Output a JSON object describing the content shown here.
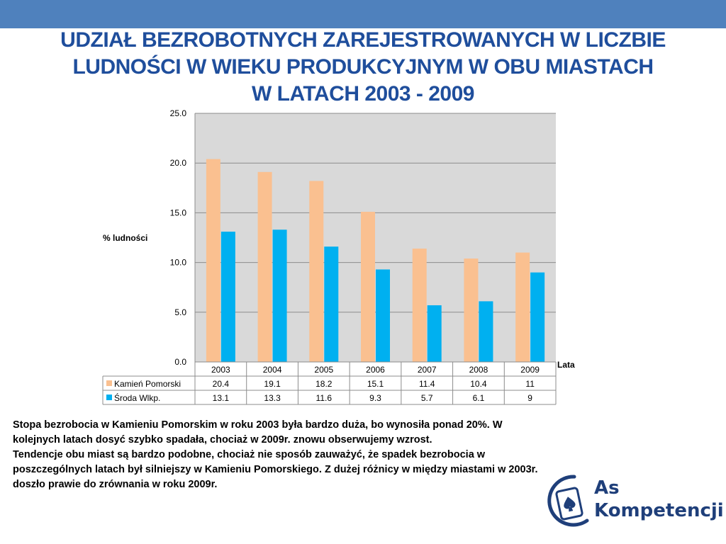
{
  "slide": {
    "title_lines": [
      "Udział bezrobotnych zarejestrowanych w liczbie",
      "ludności w wieku produkcyjnym w obu miastach",
      "w latach 2003 - 2009"
    ],
    "body_paragraphs": [
      "Stopa bezrobocia w Kamieniu Pomorskim w roku 2003 była bardzo duża, bo wynosiła ponad 20%.  W kolejnych latach dosyć szybko spadała, chociaż w 2009r. znowu obserwujemy wzrost.",
      "Tendencje obu miast są bardzo podobne, chociaż nie sposób zauważyć, że spadek bezrobocia w poszczególnych latach był silniejszy w Kamieniu Pomorskiego. Z dużej różnicy w między miastami w 2003r. doszło prawie do zrównania w roku 2009r."
    ],
    "logo": {
      "line1": "As",
      "line2": "Kompetencji",
      "icon": "spade-card-icon"
    },
    "colors": {
      "top_bar": "#4f81bd",
      "title": "#1f4e9c"
    }
  },
  "chart_data": {
    "type": "bar",
    "categories": [
      "2003",
      "2004",
      "2005",
      "2006",
      "2007",
      "2008",
      "2009"
    ],
    "series": [
      {
        "name": "Kamień Pomorski",
        "values": [
          20.4,
          19.1,
          18.2,
          15.1,
          11.4,
          10.4,
          11
        ],
        "color": "#fac090"
      },
      {
        "name": "Środa Wlkp.",
        "values": [
          13.1,
          13.3,
          11.6,
          9.3,
          5.7,
          6.1,
          9
        ],
        "color": "#00b0f0"
      }
    ],
    "table_values": [
      [
        "20.4",
        "19.1",
        "18.2",
        "15.1",
        "11.4",
        "10.4",
        "11"
      ],
      [
        "13.1",
        "13.3",
        "11.6",
        "9.3",
        "5.7",
        "6.1",
        "9"
      ]
    ],
    "ylabel": "% ludności",
    "xlabel": "Lata",
    "ylim": [
      0,
      25
    ],
    "yticks": [
      "0.0",
      "5.0",
      "10.0",
      "15.0",
      "20.0",
      "25.0"
    ],
    "grid": true,
    "legend": "data-table",
    "plot_background": "#d9d9d9"
  }
}
